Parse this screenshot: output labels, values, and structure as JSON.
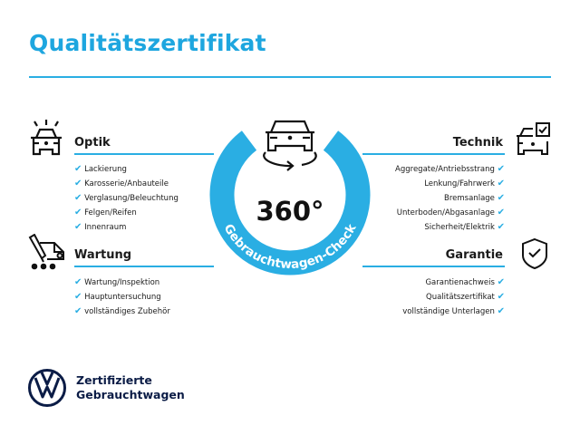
{
  "title": "Qualitätszertifikat",
  "accent_color": "#2aaee3",
  "center": {
    "value": "360°",
    "ring_text": "Gebrauchtwagen-Check"
  },
  "check_icon": "✔",
  "sections": {
    "optik": {
      "heading": "Optik",
      "icon": "car-lights-icon",
      "items": [
        "Lackierung",
        "Karosserie/Anbauteile",
        "Verglasung/Beleuchtung",
        "Felgen/Reifen",
        "Innenraum"
      ]
    },
    "wartung": {
      "heading": "Wartung",
      "icon": "service-truck-icon",
      "items": [
        "Wartung/Inspektion",
        "Hauptuntersuchung",
        "vollständiges Zubehör"
      ]
    },
    "technik": {
      "heading": "Technik",
      "icon": "car-checklist-icon",
      "items": [
        "Aggregate/Antriebsstrang",
        "Lenkung/Fahrwerk",
        "Bremsanlage",
        "Unterboden/Abgasanlage",
        "Sicherheit/Elektrik"
      ]
    },
    "garantie": {
      "heading": "Garantie",
      "icon": "shield-check-icon",
      "items": [
        "Garantienachweis",
        "Qualitätszertifikat",
        "vollständige Unterlagen"
      ]
    }
  },
  "brand": {
    "line1": "Zertifizierte",
    "line2": "Gebrauchtwagen",
    "logo_color": "#0b1c46"
  }
}
